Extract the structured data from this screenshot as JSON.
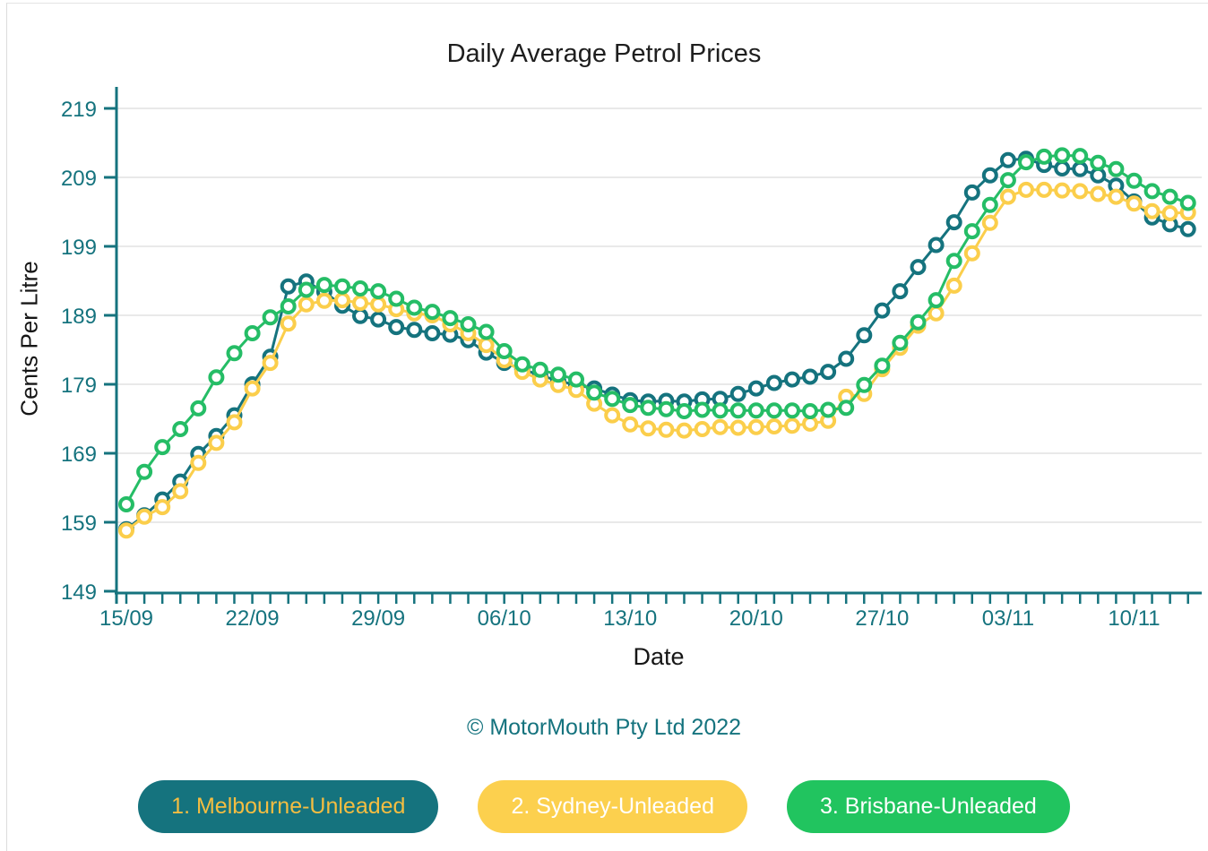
{
  "chart_data": {
    "type": "line",
    "title": "Daily Average Petrol Prices",
    "xlabel": "Date",
    "ylabel": "Cents Per Litre",
    "copyright": "© MotorMouth Pty Ltd 2022",
    "axis_color": "#15737e",
    "grid_color": "#e9e9e9",
    "grid": "horizontal",
    "legend_position": "bottom",
    "ylim": [
      149,
      222
    ],
    "y_ticks": [
      149,
      159,
      169,
      179,
      189,
      199,
      209,
      219
    ],
    "x_tick_labels": [
      "15/09",
      "22/09",
      "29/09",
      "06/10",
      "13/10",
      "20/10",
      "27/10",
      "03/11",
      "10/11"
    ],
    "x_tick_every_days": 7,
    "dates": [
      "15/09",
      "16/09",
      "17/09",
      "18/09",
      "19/09",
      "20/09",
      "21/09",
      "22/09",
      "23/09",
      "24/09",
      "25/09",
      "26/09",
      "27/09",
      "28/09",
      "29/09",
      "30/09",
      "01/10",
      "02/10",
      "03/10",
      "04/10",
      "05/10",
      "06/10",
      "07/10",
      "08/10",
      "09/10",
      "10/10",
      "11/10",
      "12/10",
      "13/10",
      "14/10",
      "15/10",
      "16/10",
      "17/10",
      "18/10",
      "19/10",
      "20/10",
      "21/10",
      "22/10",
      "23/10",
      "24/10",
      "25/10",
      "26/10",
      "27/10",
      "28/10",
      "29/10",
      "30/10",
      "31/10",
      "01/11",
      "02/11",
      "03/11",
      "04/11",
      "05/11",
      "06/11",
      "07/11",
      "08/11",
      "09/11",
      "10/11",
      "11/11",
      "12/11",
      "13/11"
    ],
    "series": [
      {
        "name": "1. Melbourne-Unleaded",
        "color": "#15737e",
        "legend_bg": "#15737e",
        "legend_text_color": "#f4bd41",
        "values": [
          158.0,
          160.0,
          162.3,
          164.9,
          168.9,
          171.5,
          174.5,
          179.0,
          183.0,
          193.2,
          193.9,
          192.4,
          190.4,
          188.9,
          188.4,
          187.3,
          186.9,
          186.4,
          186.2,
          185.4,
          183.6,
          182.1,
          181.2,
          180.3,
          179.5,
          178.9,
          178.4,
          177.5,
          176.7,
          176.5,
          176.6,
          176.5,
          176.8,
          176.9,
          177.6,
          178.4,
          179.2,
          179.7,
          180.1,
          180.8,
          182.7,
          186.1,
          189.7,
          192.5,
          196.0,
          199.2,
          202.5,
          206.8,
          209.3,
          211.5,
          211.7,
          210.8,
          210.3,
          210.2,
          209.3,
          207.8,
          205.5,
          203.2,
          202.2,
          201.5
        ]
      },
      {
        "name": "2. Sydney-Unleaded",
        "color": "#fbce4b",
        "legend_bg": "#fcd04e",
        "legend_text_color": "#ffffff",
        "values": [
          157.8,
          159.8,
          161.2,
          163.5,
          167.6,
          170.5,
          173.5,
          178.4,
          182.1,
          187.8,
          190.6,
          191.1,
          191.2,
          190.8,
          190.6,
          189.9,
          189.3,
          189.0,
          187.7,
          186.4,
          184.7,
          182.5,
          180.8,
          179.7,
          178.9,
          178.2,
          176.2,
          174.5,
          173.2,
          172.6,
          172.4,
          172.3,
          172.5,
          172.8,
          172.7,
          172.8,
          172.9,
          173.0,
          173.3,
          173.7,
          177.2,
          177.6,
          181.2,
          184.3,
          187.5,
          189.3,
          193.3,
          198.0,
          202.4,
          206.2,
          207.2,
          207.2,
          207.1,
          207.0,
          206.6,
          206.2,
          205.2,
          204.1,
          203.8,
          203.9
        ]
      },
      {
        "name": "3. Brisbane-Unleaded",
        "color": "#25bd66",
        "legend_bg": "#21c45f",
        "legend_text_color": "#ffffff",
        "values": [
          161.6,
          166.3,
          169.9,
          172.5,
          175.5,
          180.0,
          183.5,
          186.4,
          188.7,
          190.3,
          192.7,
          193.4,
          193.2,
          192.9,
          192.5,
          191.4,
          190.1,
          189.5,
          188.6,
          187.7,
          186.6,
          183.8,
          181.9,
          181.1,
          180.4,
          179.7,
          177.8,
          176.9,
          176.0,
          175.6,
          175.4,
          175.1,
          175.3,
          175.2,
          175.2,
          175.2,
          175.2,
          175.2,
          175.1,
          175.3,
          175.6,
          178.9,
          181.7,
          185.0,
          188.0,
          191.2,
          196.9,
          201.2,
          205.0,
          208.6,
          211.2,
          212.0,
          212.2,
          212.1,
          211.1,
          210.2,
          208.5,
          207.0,
          206.2,
          205.3
        ]
      }
    ]
  }
}
